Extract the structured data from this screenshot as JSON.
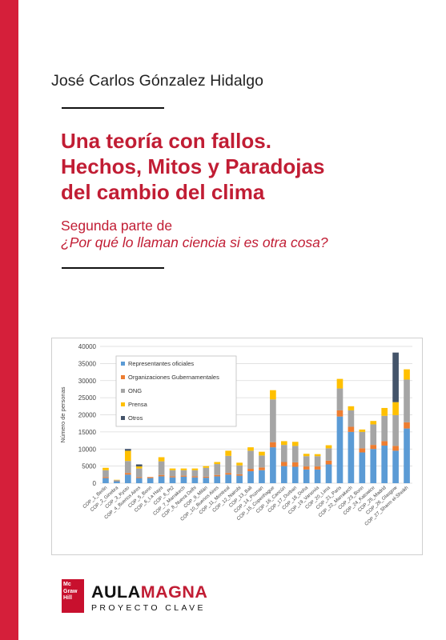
{
  "cover": {
    "author": "José Carlos Gónzalez Hidalgo",
    "title_lines": [
      "Una teoría con fallos.",
      "Hechos, Mitos y Paradojas",
      "del cambio del clima"
    ],
    "subtitle_line1": "Segunda parte de",
    "subtitle_line2": "¿Por qué lo llaman ciencia si es otra cosa?"
  },
  "publisher": {
    "logo_lines": [
      "Mc",
      "Graw",
      "Hill"
    ],
    "brand_part1": "AULA",
    "brand_part2": "MAGNA",
    "brand_sub": "PROYECTO CLAVE",
    "brand_color": "#c11d34"
  },
  "chart_data": {
    "type": "bar",
    "stacked": true,
    "ylabel": "Número de personas",
    "xlabel": "",
    "ylim": [
      0,
      40000
    ],
    "yticks": [
      0,
      5000,
      10000,
      15000,
      20000,
      25000,
      30000,
      35000,
      40000
    ],
    "legend_position": "top-left",
    "categories": [
      "COP_1_Berlin",
      "COP_2_Ginebra",
      "COP_3_Kyoto",
      "COP_4_Buenos Aires",
      "COP_5_Bonn",
      "COP_6_La Haya",
      "COP_6_Pt2",
      "COP_7_Marrakech",
      "COP_8_Nueva Delhi",
      "COP_9_Milán",
      "COP_10_Buenos Aires",
      "COP_11_Montreal",
      "COP_12_Nairobi",
      "COP_13_Bali",
      "COP_14_Poznan",
      "COP_15_Copenhague",
      "COP_16_Cancún",
      "COP_17_Durban",
      "COP_18_Doha",
      "COP_19_Varsovia",
      "COP_20_Lima",
      "COP_21_Paris",
      "COP_22_Marrakech",
      "COP_23_Bonn",
      "COP_24_Katowice",
      "COP_25_Madrid",
      "COP_26_Glasgow",
      "COP_27_Sharm el-Sheikh"
    ],
    "series": [
      {
        "name": "Representantes oficiales",
        "color": "#5b9bd5",
        "values": [
          1500,
          600,
          2500,
          1500,
          1500,
          2000,
          1700,
          1900,
          1700,
          1600,
          2000,
          2500,
          2200,
          3500,
          3800,
          10500,
          5000,
          4800,
          4000,
          4000,
          5500,
          19500,
          15000,
          9000,
          10000,
          11000,
          9500,
          16000
        ]
      },
      {
        "name": "Organizaciones Gubernamentales",
        "color": "#ed7d31",
        "values": [
          300,
          100,
          500,
          300,
          300,
          400,
          300,
          300,
          300,
          300,
          400,
          500,
          400,
          700,
          800,
          1500,
          1200,
          1300,
          900,
          900,
          1100,
          1800,
          1500,
          1200,
          1200,
          1300,
          1400,
          1800
        ]
      },
      {
        "name": "ONG",
        "color": "#a5a5a5",
        "values": [
          2000,
          200,
          3500,
          2500,
          0,
          4000,
          1800,
          1600,
          1800,
          2600,
          3200,
          5000,
          2600,
          5300,
          3500,
          12500,
          5000,
          4800,
          3000,
          3000,
          3600,
          6400,
          4800,
          4800,
          6000,
          7400,
          9000,
          12500
        ]
      },
      {
        "name": "Prensa",
        "color": "#ffc000",
        "values": [
          700,
          100,
          3000,
          600,
          0,
          1200,
          500,
          500,
          500,
          500,
          600,
          1500,
          800,
          1000,
          1100,
          2700,
          1100,
          1200,
          700,
          600,
          900,
          2800,
          1200,
          700,
          1000,
          2300,
          3800,
          3000
        ]
      },
      {
        "name": "Otros",
        "color": "#44546a",
        "values": [
          0,
          0,
          500,
          600,
          0,
          0,
          0,
          0,
          0,
          0,
          0,
          0,
          0,
          0,
          0,
          0,
          0,
          0,
          0,
          0,
          0,
          0,
          0,
          0,
          0,
          0,
          14500,
          0
        ]
      }
    ]
  }
}
